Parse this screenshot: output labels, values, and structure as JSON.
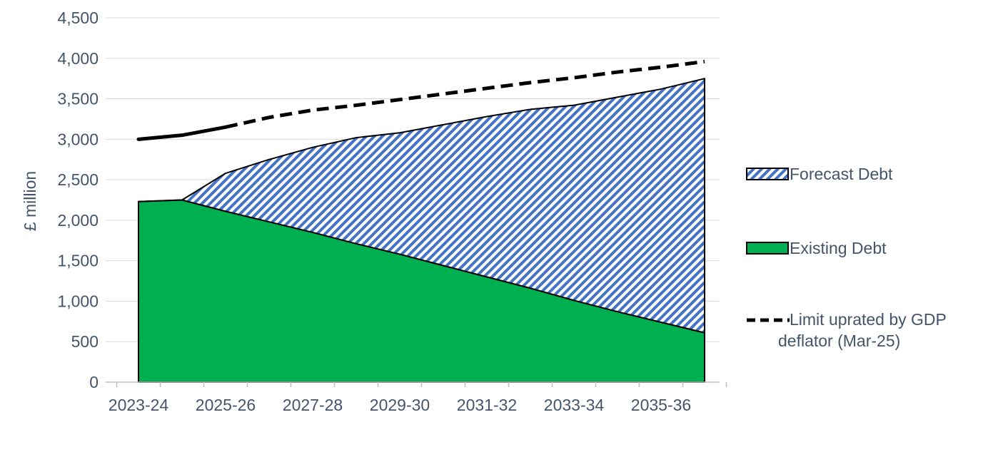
{
  "chart_data": {
    "type": "area",
    "title": "",
    "xlabel": "",
    "ylabel": "£ million",
    "ylim": [
      0,
      4500
    ],
    "y_ticks": [
      0,
      500,
      1000,
      1500,
      2000,
      2500,
      3000,
      3500,
      4000,
      4500
    ],
    "y_tick_labels": [
      "0",
      "500",
      "1,000",
      "1,500",
      "2,000",
      "2,500",
      "3,000",
      "3,500",
      "4,000",
      "4,500"
    ],
    "categories": [
      "2023-24",
      "2024-25",
      "2025-26",
      "2026-27",
      "2027-28",
      "2028-29",
      "2029-30",
      "2030-31",
      "2031-32",
      "2032-33",
      "2033-34",
      "2034-35",
      "2035-36",
      "2036-37"
    ],
    "x_tick_labels": [
      "2023-24",
      "2025-26",
      "2027-28",
      "2029-30",
      "2031-32",
      "2033-34",
      "2035-36"
    ],
    "grid": "horizontal",
    "legend_position": "right",
    "series": [
      {
        "name": "Existing Debt",
        "kind": "stacked-area",
        "color": "#00b050",
        "values": [
          2230,
          2250,
          2110,
          1980,
          1850,
          1710,
          1580,
          1440,
          1300,
          1160,
          1010,
          870,
          740,
          610
        ]
      },
      {
        "name": "Forecast Debt",
        "kind": "stacked-area-hatched",
        "color": "#4472c4",
        "values": [
          0,
          0,
          470,
          770,
          1050,
          1310,
          1500,
          1740,
          1980,
          2210,
          2410,
          2650,
          2880,
          3140
        ]
      },
      {
        "name": "Limit uprated by GDP deflator (Mar-25)",
        "kind": "line",
        "color": "#000000",
        "solid_until_index": 2,
        "values": [
          3000,
          3050,
          3150,
          3270,
          3360,
          3420,
          3490,
          3560,
          3630,
          3700,
          3760,
          3830,
          3890,
          3960
        ]
      }
    ]
  }
}
